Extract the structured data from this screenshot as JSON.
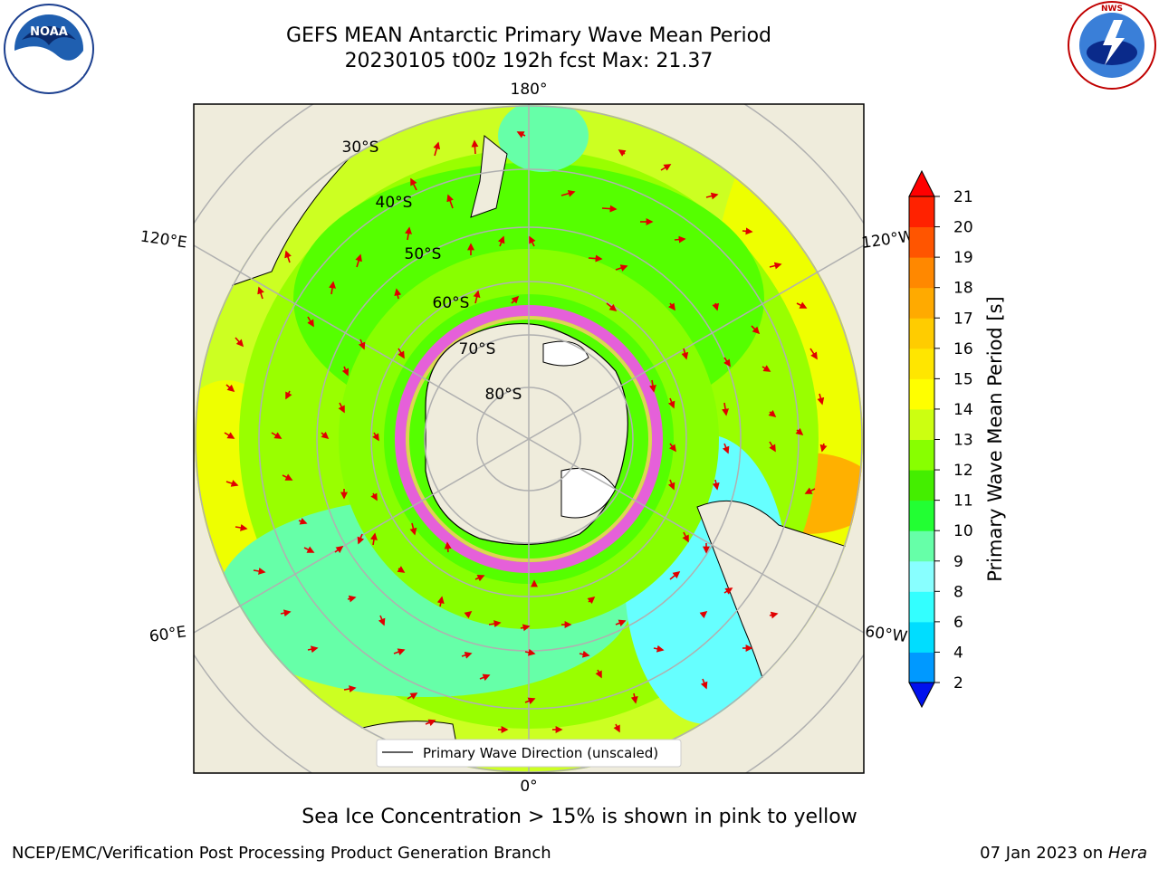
{
  "header": {
    "title_line1": "GEFS MEAN Antarctic Primary Wave Mean Period",
    "title_line2": "20230105 t00z 192h fcst   Max: 21.37"
  },
  "logos": {
    "left_name": "NOAA",
    "right_name": "NATIONAL WEATHER SERVICE"
  },
  "map": {
    "longitude_labels": [
      "180°",
      "120°E",
      "120°W",
      "60°E",
      "60°W",
      "0°"
    ],
    "latitude_labels": [
      "30°S",
      "40°S",
      "50°S",
      "60°S",
      "70°S",
      "80°S"
    ],
    "legend_label": "Primary Wave Direction (unscaled)"
  },
  "colorbar": {
    "label": "Primary Wave Mean Period [s]",
    "ticks": [
      "2",
      "4",
      "6",
      "8",
      "9",
      "10",
      "11",
      "12",
      "13",
      "14",
      "15",
      "16",
      "17",
      "18",
      "19",
      "20",
      "21"
    ],
    "colors": [
      "#0033ff",
      "#0099ff",
      "#00ddff",
      "#33ffff",
      "#88ffff",
      "#66ffa8",
      "#22ff33",
      "#44ee00",
      "#88ff00",
      "#ccff11",
      "#ffff00",
      "#ffe600",
      "#ffcc00",
      "#ffaa00",
      "#ff8800",
      "#ff5500",
      "#ff2200"
    ],
    "extend_low_color": "#0011ee",
    "extend_high_color": "#ff0000"
  },
  "footer": {
    "sea_ice_note": "Sea Ice Concentration > 15% is shown in pink to yellow",
    "left": "NCEP/EMC/Verification Post Processing Product Generation Branch",
    "right_date": "07 Jan 2023 on",
    "right_host": "Hera"
  },
  "chart_data": {
    "type": "heatmap",
    "title": "GEFS MEAN Antarctic Primary Wave Mean Period",
    "subtitle": "20230105 t00z 192h fcst   Max: 21.37",
    "max_value": 21.37,
    "colorbar_label": "Primary Wave Mean Period [s]",
    "colorbar_levels": [
      2,
      4,
      6,
      8,
      9,
      10,
      11,
      12,
      13,
      14,
      15,
      16,
      17,
      18,
      19,
      20,
      21
    ],
    "legend": "Primary Wave Direction (unscaled)"
  }
}
